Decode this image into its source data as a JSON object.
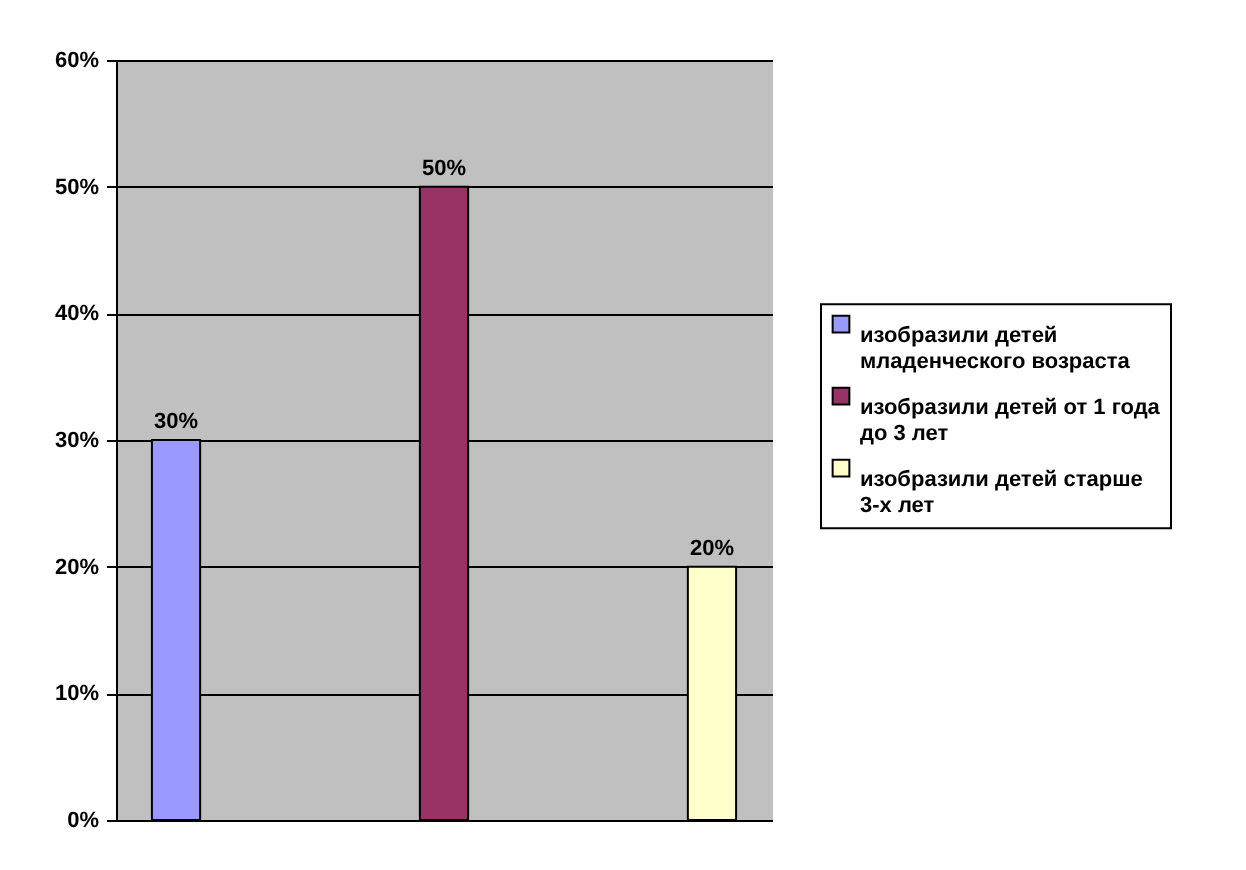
{
  "chart_data": {
    "type": "bar",
    "categories": [
      null
    ],
    "series": [
      {
        "name": "изобразили детей младенческого возраста",
        "color": "#9999ff",
        "values": [
          30
        ],
        "value_labels": [
          "30%"
        ]
      },
      {
        "name": "изобразили детей от 1 года до 3 лет",
        "color": "#993366",
        "values": [
          50
        ],
        "value_labels": [
          "50%"
        ]
      },
      {
        "name": "изобразили детей старше 3-х лет",
        "color": "#ffffcc",
        "values": [
          20
        ],
        "value_labels": [
          "20%"
        ]
      }
    ],
    "ylim": [
      0,
      60
    ],
    "yticks": [
      {
        "value": 0,
        "label": "0%"
      },
      {
        "value": 10,
        "label": "10%"
      },
      {
        "value": 20,
        "label": "20%"
      },
      {
        "value": 30,
        "label": "30%"
      },
      {
        "value": 40,
        "label": "40%"
      },
      {
        "value": 50,
        "label": "50%"
      },
      {
        "value": 60,
        "label": "60%"
      }
    ],
    "grid": "y",
    "legend": "right",
    "tick_labels": "y"
  }
}
